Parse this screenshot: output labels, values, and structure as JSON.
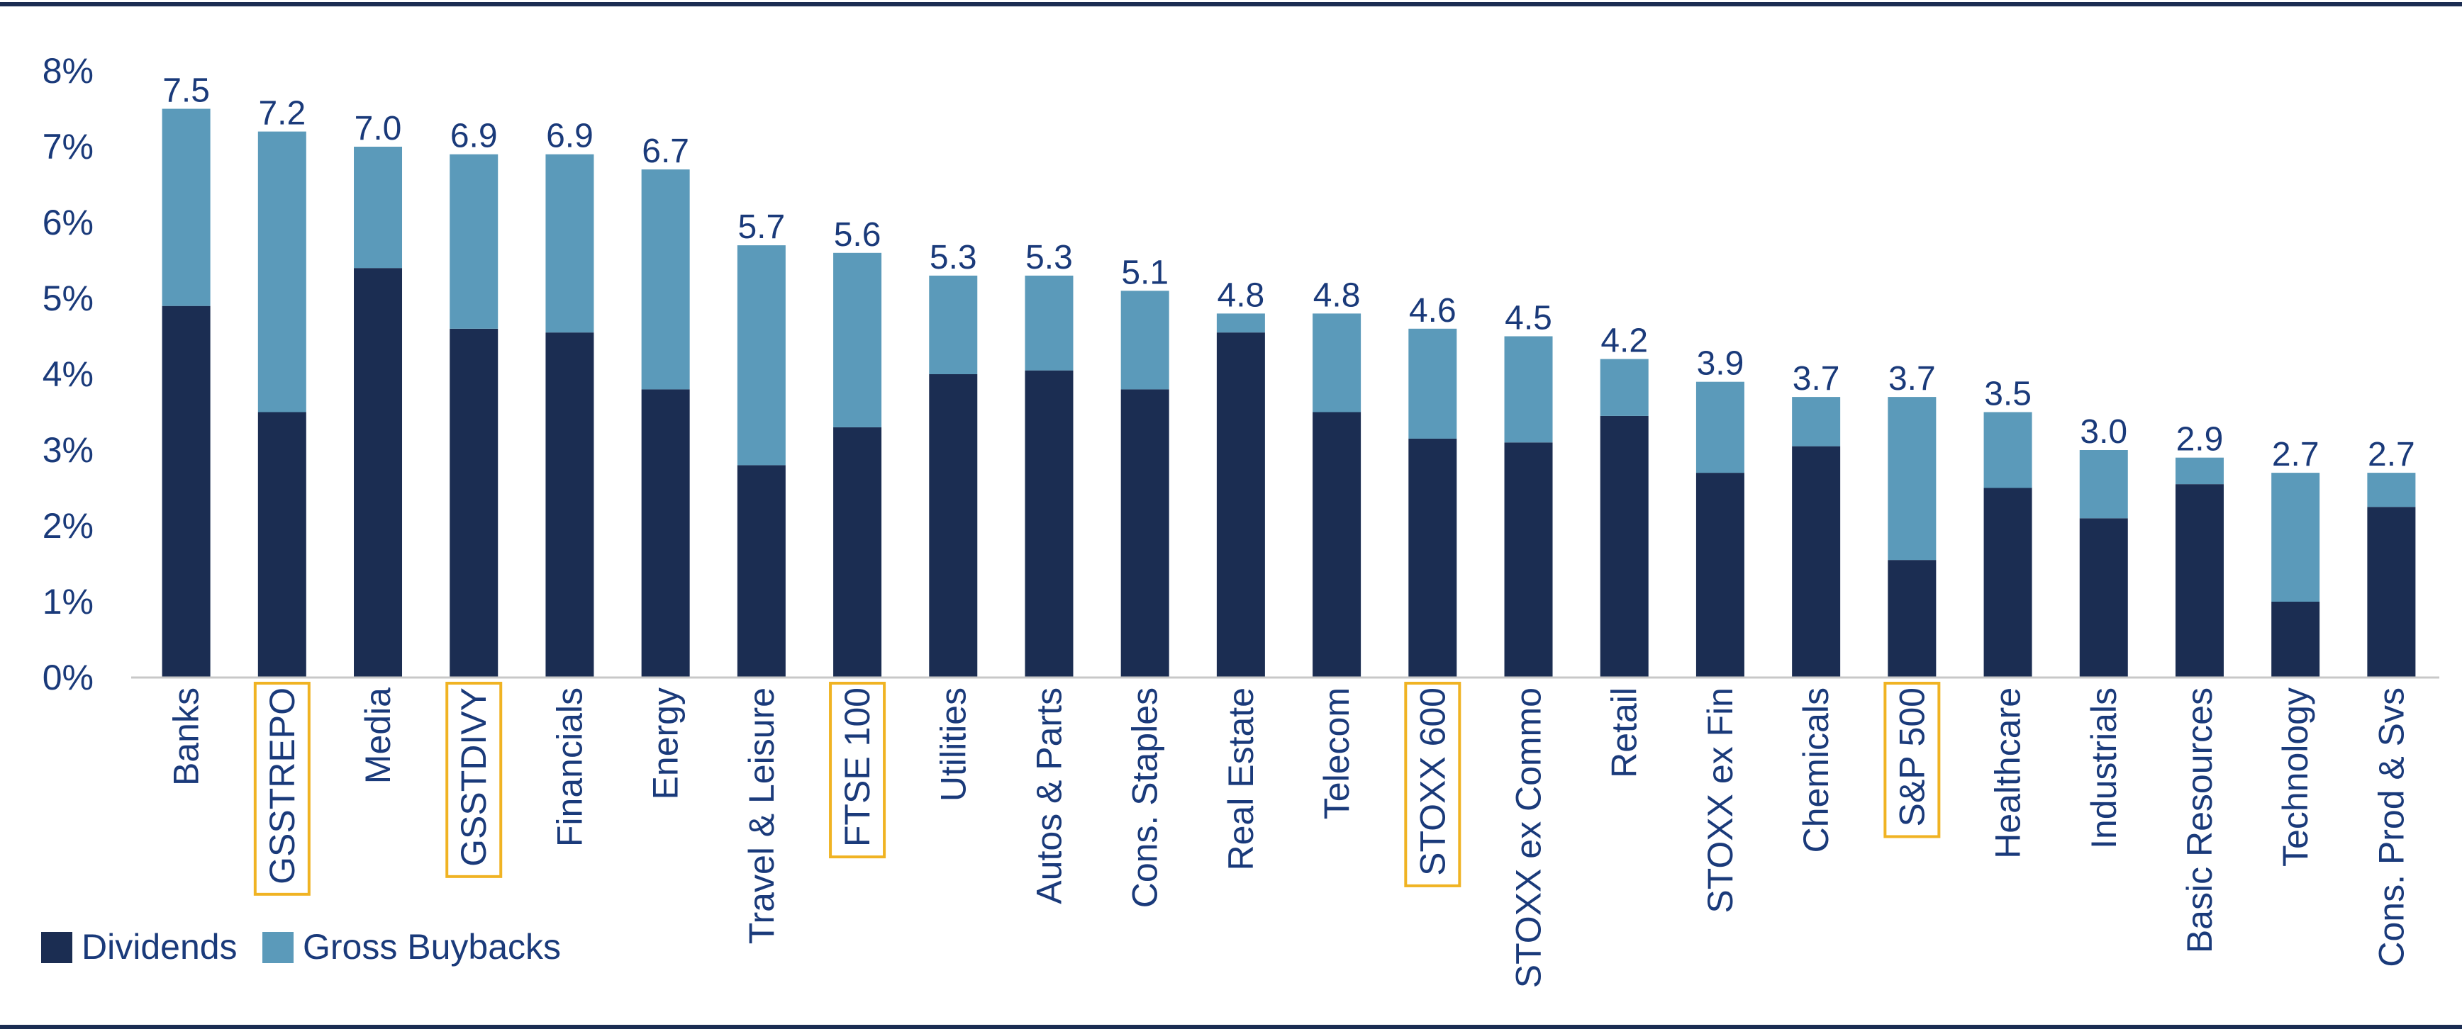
{
  "chart_data": {
    "type": "bar",
    "stacked": true,
    "categories": [
      "Banks",
      "GSSTREPO",
      "Media",
      "GSSTDIVY",
      "Financials",
      "Energy",
      "Travel & Leisure",
      "FTSE 100",
      "Utilities",
      "Autos & Parts",
      "Cons. Staples",
      "Real Estate",
      "Telecom",
      "STOXX 600",
      "STOXX ex Commo",
      "Retail",
      "STOXX ex Fin",
      "Chemicals",
      "S&P 500",
      "Healthcare",
      "Industrials",
      "Basic Resources",
      "Technology",
      "Cons. Prod & Svs"
    ],
    "highlighted_categories": [
      "GSSTREPO",
      "GSSTDIVY",
      "FTSE 100",
      "STOXX 600",
      "S&P 500"
    ],
    "series": [
      {
        "name": "Dividends",
        "color": "#1b2d52",
        "values": [
          4.9,
          3.5,
          5.4,
          4.6,
          4.55,
          3.8,
          2.8,
          3.3,
          4.0,
          4.05,
          3.8,
          4.55,
          3.5,
          3.15,
          3.1,
          3.45,
          2.7,
          3.05,
          1.55,
          2.5,
          2.1,
          2.55,
          1.0,
          2.25
        ]
      },
      {
        "name": "Gross Buybacks",
        "color": "#5b9aba",
        "values": [
          2.6,
          3.7,
          1.6,
          2.3,
          2.35,
          2.9,
          2.9,
          2.3,
          1.3,
          1.25,
          1.3,
          0.25,
          1.3,
          1.45,
          1.4,
          0.75,
          1.2,
          0.65,
          2.15,
          1.0,
          0.9,
          0.35,
          1.7,
          0.45
        ]
      }
    ],
    "totals": [
      "7.5",
      "7.2",
      "7.0",
      "6.9",
      "6.9",
      "6.7",
      "5.7",
      "5.6",
      "5.3",
      "5.3",
      "5.1",
      "4.8",
      "4.8",
      "4.6",
      "4.5",
      "4.2",
      "3.9",
      "3.7",
      "3.7",
      "3.5",
      "3.0",
      "2.9",
      "2.7",
      "2.7"
    ],
    "yticks": [
      "0%",
      "1%",
      "2%",
      "3%",
      "4%",
      "5%",
      "6%",
      "7%",
      "8%"
    ],
    "ylim": [
      0,
      8
    ],
    "grid": false,
    "legend_placement": "bottom-left",
    "colors": {
      "text": "#1a3a7a",
      "highlight_box": "#f0b323",
      "frame": "#1b2d52",
      "axis": "#c8c8c8"
    }
  }
}
